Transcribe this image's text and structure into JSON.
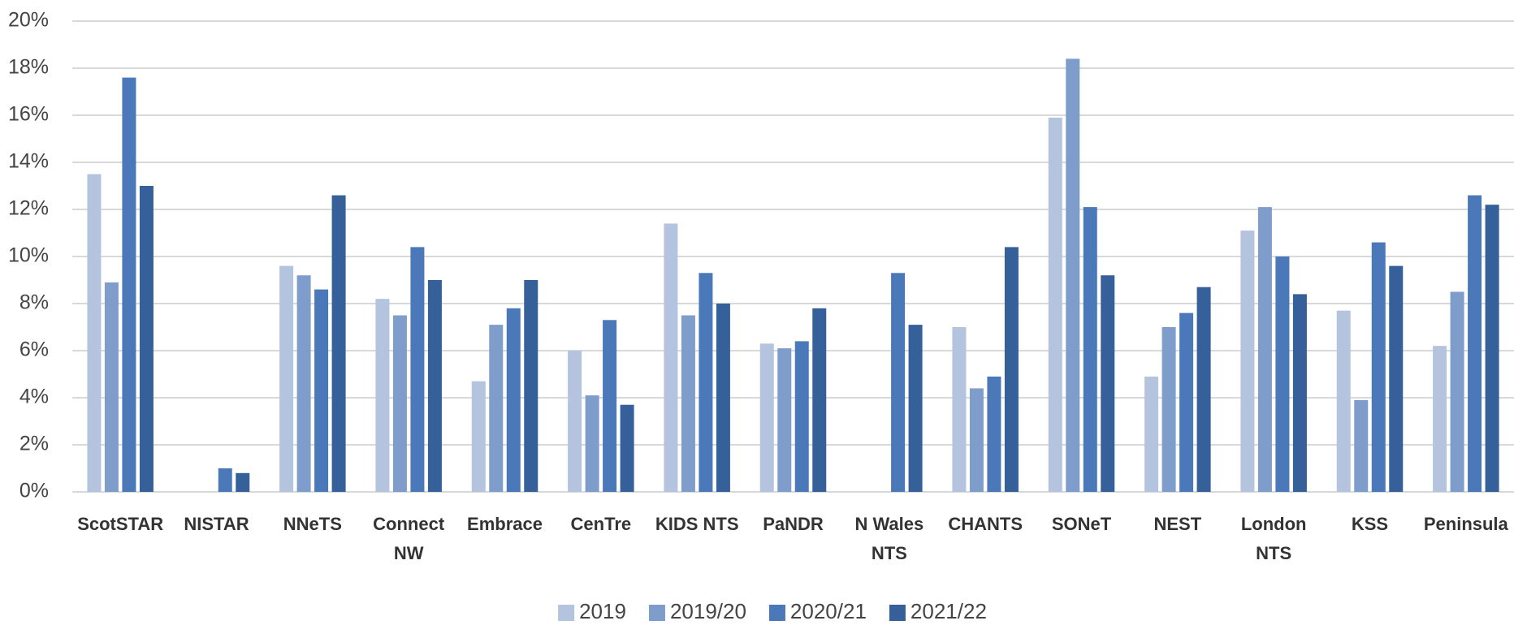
{
  "chart_data": {
    "type": "bar",
    "categories": [
      "ScotSTAR",
      "NISTAR",
      "NNeTS",
      "Connect NW",
      "Embrace",
      "CenTre",
      "KIDS NTS",
      "PaNDR",
      "N Wales NTS",
      "CHANTS",
      "SONeT",
      "NEST",
      "London NTS",
      "KSS",
      "Peninsula"
    ],
    "series": [
      {
        "name": "2019",
        "color": "#b4c3de",
        "values": [
          13.5,
          null,
          9.6,
          8.2,
          4.7,
          6.0,
          11.4,
          6.3,
          null,
          7.0,
          15.9,
          4.9,
          11.1,
          7.7,
          6.2
        ]
      },
      {
        "name": "2019/20",
        "color": "#7f9dcb",
        "values": [
          8.9,
          null,
          9.2,
          7.5,
          7.1,
          4.1,
          7.5,
          6.1,
          null,
          4.4,
          18.4,
          7.0,
          12.1,
          3.9,
          8.5
        ]
      },
      {
        "name": "2020/21",
        "color": "#4a78b8",
        "values": [
          17.6,
          1.0,
          8.6,
          10.4,
          7.8,
          7.3,
          9.3,
          6.4,
          9.3,
          4.9,
          12.1,
          7.6,
          10.0,
          10.6,
          12.6
        ]
      },
      {
        "name": "2021/22",
        "color": "#35609a",
        "values": [
          13.0,
          0.8,
          12.6,
          9.0,
          9.0,
          3.7,
          8.0,
          7.8,
          7.1,
          10.4,
          9.2,
          8.7,
          8.4,
          9.6,
          12.2
        ]
      }
    ],
    "ylim": [
      0,
      20
    ],
    "yticks": [
      {
        "value": 0,
        "label": "0%"
      },
      {
        "value": 2,
        "label": "2%"
      },
      {
        "value": 4,
        "label": "4%"
      },
      {
        "value": 6,
        "label": "6%"
      },
      {
        "value": 8,
        "label": "8%"
      },
      {
        "value": 10,
        "label": "10%"
      },
      {
        "value": 12,
        "label": "12%"
      },
      {
        "value": 14,
        "label": "14%"
      },
      {
        "value": 16,
        "label": "16%"
      },
      {
        "value": 18,
        "label": "18%"
      },
      {
        "value": 20,
        "label": "20%"
      }
    ],
    "grid": true,
    "legend": "bottom"
  }
}
